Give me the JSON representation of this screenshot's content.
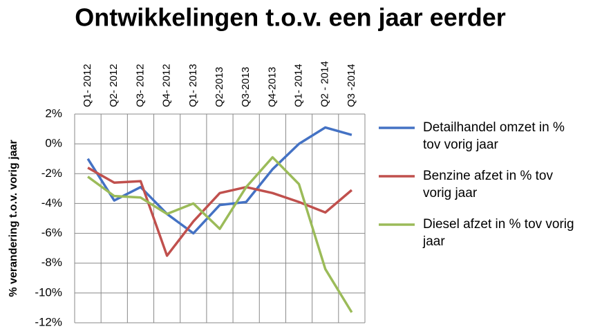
{
  "chart_data": {
    "type": "line",
    "title": "Ontwikkelingen t.o.v. een jaar eerder",
    "y_label": "% verandering t.o.v. vorig jaar",
    "categories": [
      "Q1- 2012",
      "Q2- 2012",
      "Q3- 2012",
      "Q4- 2012",
      "Q1- 2013",
      "Q2-2013",
      "Q3-2013",
      "Q4-2013",
      "Q1- 2014",
      "Q2 - 2014",
      "Q3 -2014"
    ],
    "series": [
      {
        "name": "Detailhandel omzet in % tov vorig jaar",
        "color": "#4472c4",
        "values": [
          -1.0,
          -3.8,
          -2.9,
          -4.7,
          -6.0,
          -4.1,
          -3.9,
          -1.7,
          0.0,
          1.1,
          0.6
        ]
      },
      {
        "name": "Benzine afzet in % tov vorig jaar",
        "color": "#c0504d",
        "values": [
          -1.6,
          -2.6,
          -2.5,
          -7.5,
          -5.2,
          -3.3,
          -2.9,
          -3.3,
          -3.9,
          -4.6,
          -3.1
        ]
      },
      {
        "name": "Diesel afzet in % tov vorig jaar",
        "color": "#9bbb59",
        "values": [
          -2.2,
          -3.5,
          -3.6,
          -4.7,
          -4.0,
          -5.7,
          -2.9,
          -0.9,
          -2.7,
          -8.4,
          -11.3
        ]
      }
    ],
    "ylim": [
      -12,
      2
    ],
    "yticks": [
      {
        "value": 2,
        "label": "2%"
      },
      {
        "value": 0,
        "label": "0%"
      },
      {
        "value": -2,
        "label": "-2%"
      },
      {
        "value": -4,
        "label": "-4%"
      },
      {
        "value": -6,
        "label": "-6%"
      },
      {
        "value": -8,
        "label": "-8%"
      },
      {
        "value": -10,
        "label": "-10%"
      },
      {
        "value": -12,
        "label": "-12%"
      }
    ],
    "grid": true,
    "legend": "right"
  }
}
